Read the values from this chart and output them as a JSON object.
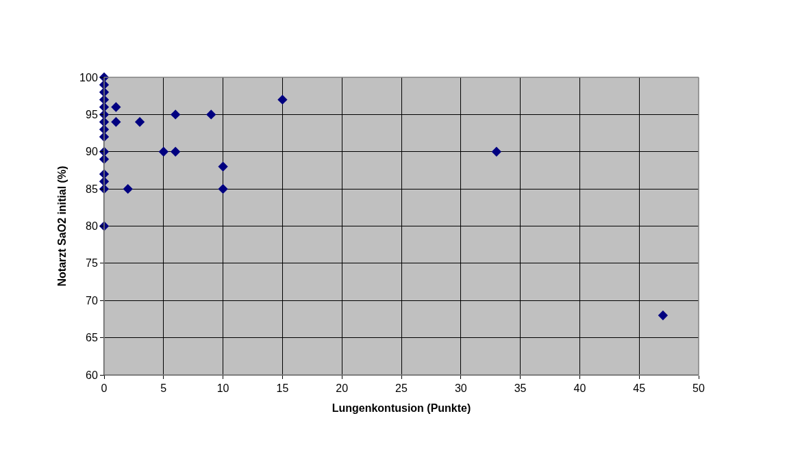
{
  "chart_data": {
    "type": "scatter",
    "xlabel": "Lungenkontusion (Punkte)",
    "ylabel": "Notarzt SaO2 initial (%)",
    "x": [
      0,
      0,
      0,
      0,
      0,
      0,
      0,
      0,
      0,
      0,
      0,
      0,
      0,
      0,
      0,
      1,
      1,
      3,
      6,
      9,
      5,
      6,
      10,
      2,
      10,
      15,
      33,
      47
    ],
    "series": [
      {
        "color": "#000080",
        "values": [
          100,
          99,
          98,
          97,
          96,
          95,
          94,
          93,
          92,
          90,
          89,
          87,
          86,
          85,
          80,
          96,
          94,
          94,
          95,
          95,
          90,
          90,
          88,
          85,
          85,
          97,
          90,
          68
        ]
      }
    ],
    "xlim": [
      0,
      50
    ],
    "xticks": [
      0,
      5,
      10,
      15,
      20,
      25,
      30,
      35,
      40,
      45,
      50
    ],
    "ylim": [
      60,
      100
    ],
    "yticks": [
      60,
      65,
      70,
      75,
      80,
      85,
      90,
      95,
      100
    ],
    "grid": true,
    "legend": false,
    "marker": "diamond"
  }
}
